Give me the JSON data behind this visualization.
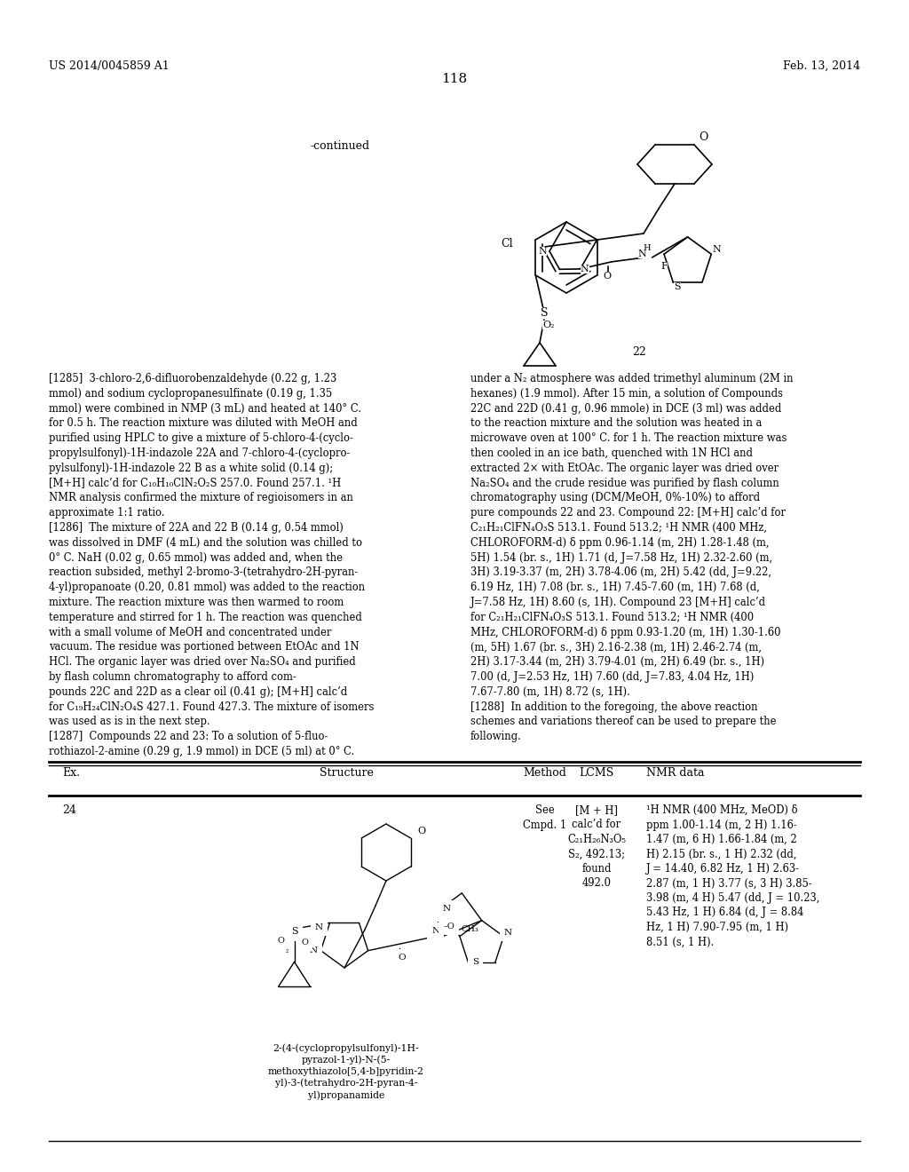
{
  "page_header_left": "US 2014/0045859 A1",
  "page_header_right": "Feb. 13, 2014",
  "page_number": "118",
  "continued_label": "-continued",
  "compound_number_top": "22",
  "background_color": "#ffffff",
  "table_header_ex": "Ex.",
  "table_header_structure": "Structure",
  "table_header_method": "Method",
  "table_header_lcms": "LCMS",
  "table_header_nmr": "NMR data",
  "table_ex_24": "24",
  "table_method_24": "See\nCmpd. 1",
  "table_lcms_24": "[M + H]\ncalc’d for\nC₂₁H₂₆N₃O₅\nS₂, 492.13;\nfound\n492.0",
  "table_nmr_24": "¹H NMR (400 MHz, MeOD) δ\nppm 1.00-1.14 (m, 2 H) 1.16-\n1.47 (m, 6 H) 1.66-1.84 (m, 2\nH) 2.15 (br. s., 1 H) 2.32 (dd,\nJ = 14.40, 6.82 Hz, 1 H) 2.63-\n2.87 (m, 1 H) 3.77 (s, 3 H) 3.85-\n3.98 (m, 4 H) 5.47 (dd, J = 10.23,\n5.43 Hz, 1 H) 6.84 (d, J = 8.84\nHz, 1 H) 7.90-7.95 (m, 1 H)\n8.51 (s, 1 H).",
  "compound_name_24": "2-(4-(cyclopropylsulfonyl)-1H-\npyrazol-1-yl)-N-(5-\nmethoxythiazolo[5,4-b]pyridin-2\nyl)-3-(tetrahydro-2H-pyran-4-\nyl)propanamide",
  "p1285_left": "[1285]  3-chloro-2,6-difluorobenzaldehyde (0.22 g, 1.23\nmmol) and sodium cyclopropanesulfinate (0.19 g, 1.35\nmmol) were combined in NMP (3 mL) and heated at 140° C.\nfor 0.5 h. The reaction mixture was diluted with MeOH and\npurified using HPLC to give a mixture of 5-chloro-4-(cyclo-\npropylsulfonyl)-1H-indazole 22A and 7-chloro-4-(cyclopro-\npylsulfonyl)-1H-indazole 22 B as a white solid (0.14 g);\n[M+H] calc’d for C₁₀H₁₀ClN₂O₂S 257.0. Found 257.1. ¹H\nNMR analysis confirmed the mixture of regioisomers in an\napproximate 1:1 ratio.\n[1286]  The mixture of 22A and 22 B (0.14 g, 0.54 mmol)\nwas dissolved in DMF (4 mL) and the solution was chilled to\n0° C. NaH (0.02 g, 0.65 mmol) was added and, when the\nreaction subsided, methyl 2-bromo-3-(tetrahydro-2H-pyran-\n4-yl)propanoate (0.20, 0.81 mmol) was added to the reaction\nmixture. The reaction mixture was then warmed to room\ntemperature and stirred for 1 h. The reaction was quenched\nwith a small volume of MeOH and concentrated under\nvacuum. The residue was portioned between EtOAc and 1N\nHCl. The organic layer was dried over Na₂SO₄ and purified\nby flash column chromatography to afford com-\npounds 22C and 22D as a clear oil (0.41 g); [M+H] calc’d\nfor C₁₉H₂₄ClN₂O₄S 427.1. Found 427.3. The mixture of isomers\nwas used as is in the next step.\n[1287]  Compounds 22 and 23: To a solution of 5-fluo-\nrothiazol-2-amine (0.29 g, 1.9 mmol) in DCE (5 ml) at 0° C.",
  "p1285_right": "under a N₂ atmosphere was added trimethyl aluminum (2M in\nhexanes) (1.9 mmol). After 15 min, a solution of Compounds\n22C and 22D (0.41 g, 0.96 mmole) in DCE (3 ml) was added\nto the reaction mixture and the solution was heated in a\nmicrowave oven at 100° C. for 1 h. The reaction mixture was\nthen cooled in an ice bath, quenched with 1N HCl and\nextracted 2× with EtOAc. The organic layer was dried over\nNa₂SO₄ and the crude residue was purified by flash column\nchromatography using (DCM/MeOH, 0%-10%) to afford\npure compounds 22 and 23. Compound 22: [M+H] calc’d for\nC₂₁H₂₁ClFN₄O₃S 513.1. Found 513.2; ¹H NMR (400 MHz,\nCHLOROFORM-d) δ ppm 0.96-1.14 (m, 2H) 1.28-1.48 (m,\n5H) 1.54 (br. s., 1H) 1.71 (d, J=7.58 Hz, 1H) 2.32-2.60 (m,\n3H) 3.19-3.37 (m, 2H) 3.78-4.06 (m, 2H) 5.42 (dd, J=9.22,\n6.19 Hz, 1H) 7.08 (br. s., 1H) 7.45-7.60 (m, 1H) 7.68 (d,\nJ=7.58 Hz, 1H) 8.60 (s, 1H). Compound 23 [M+H] calc’d\nfor C₂₁H₂₁ClFN₄O₃S 513.1. Found 513.2; ¹H NMR (400\nMHz, CHLOROFORM-d) δ ppm 0.93-1.20 (m, 1H) 1.30-1.60\n(m, 5H) 1.67 (br. s., 3H) 2.16-2.38 (m, 1H) 2.46-2.74 (m,\n2H) 3.17-3.44 (m, 2H) 3.79-4.01 (m, 2H) 6.49 (br. s., 1H)\n7.00 (d, J=2.53 Hz, 1H) 7.60 (dd, J=7.83, 4.04 Hz, 1H)\n7.67-7.80 (m, 1H) 8.72 (s, 1H).\n[1288]  In addition to the foregoing, the above reaction\nschemes and variations thereof can be used to prepare the\nfollowing."
}
